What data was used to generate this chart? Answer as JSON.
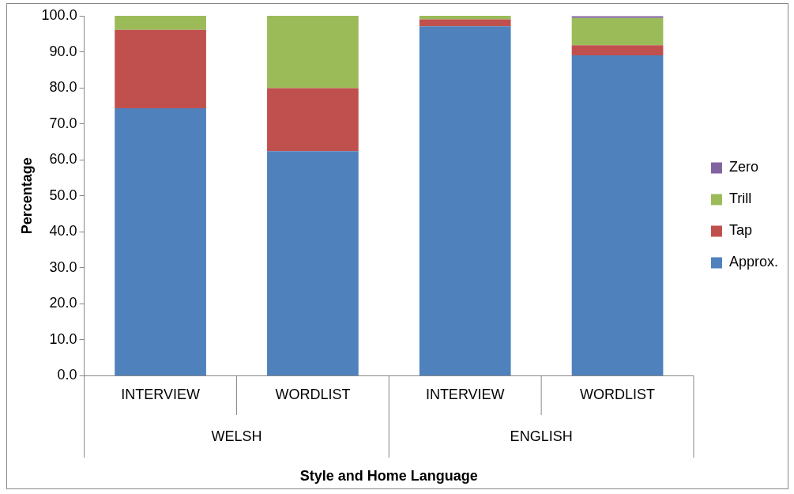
{
  "chart_data": {
    "type": "bar",
    "stacked": true,
    "ylabel": "Percentage",
    "xlabel": "Style and Home Language",
    "categories": [
      "INTERVIEW",
      "WORDLIST",
      "INTERVIEW",
      "WORDLIST"
    ],
    "series": [
      {
        "name": "Approx.",
        "color": "#4f81bd",
        "values": [
          74.3,
          62.4,
          97.1,
          89.0
        ]
      },
      {
        "name": "Tap",
        "color": "#c0504d",
        "values": [
          21.8,
          17.5,
          1.9,
          2.8
        ]
      },
      {
        "name": "Trill",
        "color": "#9bbb59",
        "values": [
          3.9,
          20.1,
          1.0,
          7.6
        ]
      },
      {
        "name": "Zero",
        "color": "#8064a2",
        "values": [
          0,
          0,
          0,
          0.5
        ]
      }
    ],
    "annotations": [
      "WELSH",
      "ENGLISH"
    ],
    "ylim": [
      0,
      100
    ],
    "yticks": [
      {
        "value": 0,
        "label": "0.0"
      },
      {
        "value": 10,
        "label": "10.0"
      },
      {
        "value": 20,
        "label": "20.0"
      },
      {
        "value": 30,
        "label": "30.0"
      },
      {
        "value": 40,
        "label": "40.0"
      },
      {
        "value": 50,
        "label": "50.0"
      },
      {
        "value": 60,
        "label": "60.0"
      },
      {
        "value": 70,
        "label": "70.0"
      },
      {
        "value": 80,
        "label": "80.0"
      },
      {
        "value": 90,
        "label": "90.0"
      },
      {
        "value": 100,
        "label": "100.0"
      }
    ],
    "grid": false,
    "legend": "right"
  }
}
